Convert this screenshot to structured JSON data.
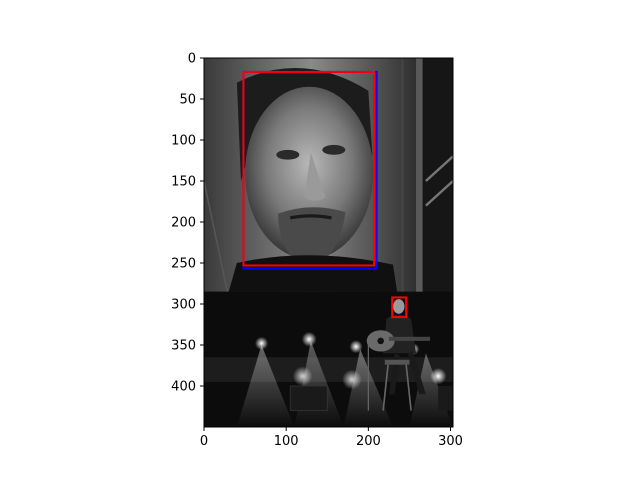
{
  "chart_data": {
    "type": "image",
    "title": "",
    "xlabel": "",
    "ylabel": "",
    "image": {
      "width": 303,
      "height": 450,
      "description": "grayscale photo: large screen showing a man's face above a stage where a seated performer plays an acoustic guitar under stage lights"
    },
    "xlim": [
      0,
      303
    ],
    "ylim": [
      450,
      0
    ],
    "x_ticks": [
      0,
      100,
      200,
      300
    ],
    "y_ticks": [
      0,
      50,
      100,
      150,
      200,
      250,
      300,
      350,
      400
    ],
    "boxes": [
      {
        "color": "#0000ff",
        "x0": 48,
        "y0": 17,
        "x1": 210,
        "y1": 257
      },
      {
        "color": "#ff0000",
        "x0": 48,
        "y0": 17,
        "x1": 207,
        "y1": 253
      },
      {
        "color": "#ff0000",
        "x0": 229,
        "y0": 292,
        "x1": 246,
        "y1": 316
      }
    ],
    "grid": false
  }
}
